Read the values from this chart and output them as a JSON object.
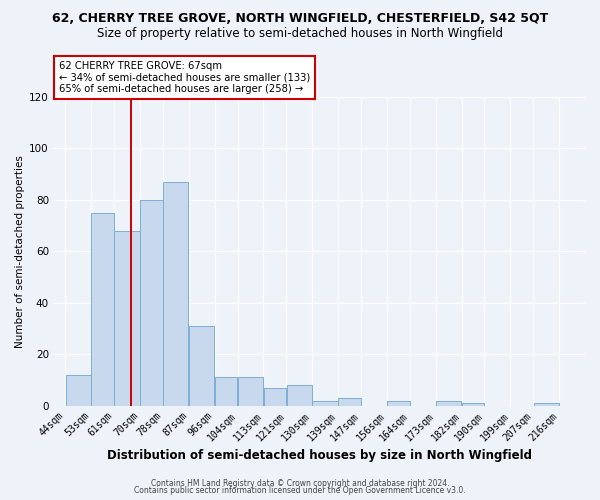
{
  "title1": "62, CHERRY TREE GROVE, NORTH WINGFIELD, CHESTERFIELD, S42 5QT",
  "title2": "Size of property relative to semi-detached houses in North Wingfield",
  "xlabel": "Distribution of semi-detached houses by size in North Wingfield",
  "ylabel": "Number of semi-detached properties",
  "bar_left_edges": [
    44,
    53,
    61,
    70,
    78,
    87,
    96,
    104,
    113,
    121,
    130,
    139,
    147,
    156,
    164,
    173,
    182,
    190,
    199,
    207
  ],
  "bar_widths": [
    9,
    8,
    9,
    8,
    9,
    9,
    8,
    9,
    8,
    9,
    9,
    8,
    9,
    8,
    9,
    9,
    8,
    9,
    8,
    9
  ],
  "bar_heights": [
    12,
    75,
    68,
    80,
    87,
    31,
    11,
    11,
    7,
    8,
    2,
    3,
    0,
    2,
    0,
    2,
    1,
    0,
    0,
    1
  ],
  "xtick_labels": [
    "44sqm",
    "53sqm",
    "61sqm",
    "70sqm",
    "78sqm",
    "87sqm",
    "96sqm",
    "104sqm",
    "113sqm",
    "121sqm",
    "130sqm",
    "139sqm",
    "147sqm",
    "156sqm",
    "164sqm",
    "173sqm",
    "182sqm",
    "190sqm",
    "199sqm",
    "207sqm",
    "216sqm"
  ],
  "xtick_positions": [
    44,
    53,
    61,
    70,
    78,
    87,
    96,
    104,
    113,
    121,
    130,
    139,
    147,
    156,
    164,
    173,
    182,
    190,
    199,
    207,
    216
  ],
  "ylim": [
    0,
    120
  ],
  "yticks": [
    0,
    20,
    40,
    60,
    80,
    100,
    120
  ],
  "xlim_min": 40,
  "xlim_max": 225,
  "bar_color": "#c8d9ed",
  "bar_edge_color": "#7bafd4",
  "property_line_x": 67,
  "annotation_title": "62 CHERRY TREE GROVE: 67sqm",
  "annotation_line1": "← 34% of semi-detached houses are smaller (133)",
  "annotation_line2": "65% of semi-detached houses are larger (258) →",
  "annotation_box_color": "#ffffff",
  "annotation_box_edge": "#cc0000",
  "footer1": "Contains HM Land Registry data © Crown copyright and database right 2024.",
  "footer2": "Contains public sector information licensed under the Open Government Licence v3.0.",
  "bg_color": "#eef2f9",
  "plot_bg_color": "#eef2f9",
  "title1_fontsize": 9.0,
  "title2_fontsize": 8.5,
  "xlabel_fontsize": 8.5,
  "ylabel_fontsize": 7.5,
  "tick_fontsize": 7.0,
  "footer_fontsize": 5.5,
  "red_line_color": "#cc0000",
  "grid_color": "#ffffff"
}
